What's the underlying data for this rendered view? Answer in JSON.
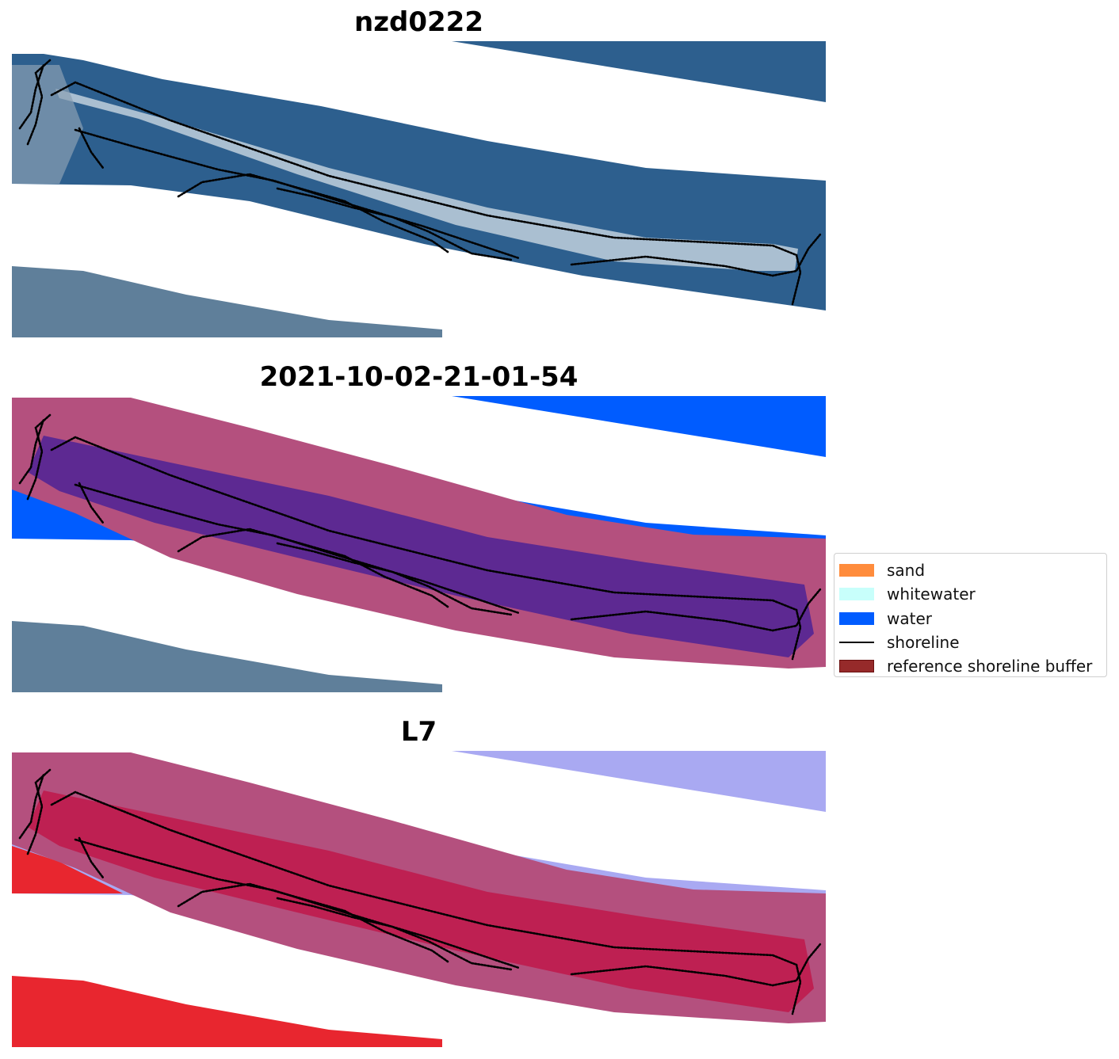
{
  "panels": [
    {
      "title": "nzd0222",
      "mode": "rgb"
    },
    {
      "title": "2021-10-02-21-01-54",
      "mode": "classified"
    },
    {
      "title": "L7",
      "mode": "index"
    }
  ],
  "legend": {
    "items": [
      {
        "label": "sand",
        "kind": "patch",
        "color": "#ff8c3c"
      },
      {
        "label": "whitewater",
        "kind": "patch",
        "color": "#c8fffb"
      },
      {
        "label": "water",
        "kind": "patch",
        "color": "#005cff"
      },
      {
        "label": "shoreline",
        "kind": "line",
        "color": "#000000"
      },
      {
        "label": "reference shoreline buffer",
        "kind": "patch",
        "color": "#962a2a"
      }
    ]
  },
  "colors": {
    "sea": "#2d5f8e",
    "land": "#5f7f9a",
    "water_class": "#005cff",
    "buffer": "#b4507e",
    "buffer_water": "#4e2295",
    "index_water": "#a9a9f2",
    "index_land": "#e8262f",
    "shoreline": "#000000"
  }
}
